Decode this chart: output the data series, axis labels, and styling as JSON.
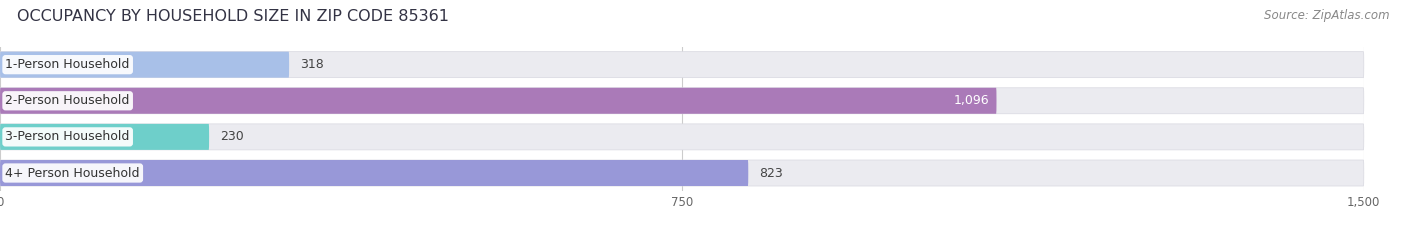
{
  "title": "OCCUPANCY BY HOUSEHOLD SIZE IN ZIP CODE 85361",
  "source": "Source: ZipAtlas.com",
  "categories": [
    "1-Person Household",
    "2-Person Household",
    "3-Person Household",
    "4+ Person Household"
  ],
  "values": [
    318,
    1096,
    230,
    823
  ],
  "bar_colors": [
    "#a8c0e8",
    "#aa7ab8",
    "#6ecfca",
    "#9898d8"
  ],
  "xlim": [
    0,
    1500
  ],
  "xticks": [
    0,
    750,
    1500
  ],
  "background_color": "#ffffff",
  "bar_track_color": "#ebebf0",
  "title_fontsize": 11.5,
  "source_fontsize": 8.5,
  "label_fontsize": 9,
  "value_fontsize": 9,
  "bar_height": 0.72,
  "bar_rounding": 0.36
}
